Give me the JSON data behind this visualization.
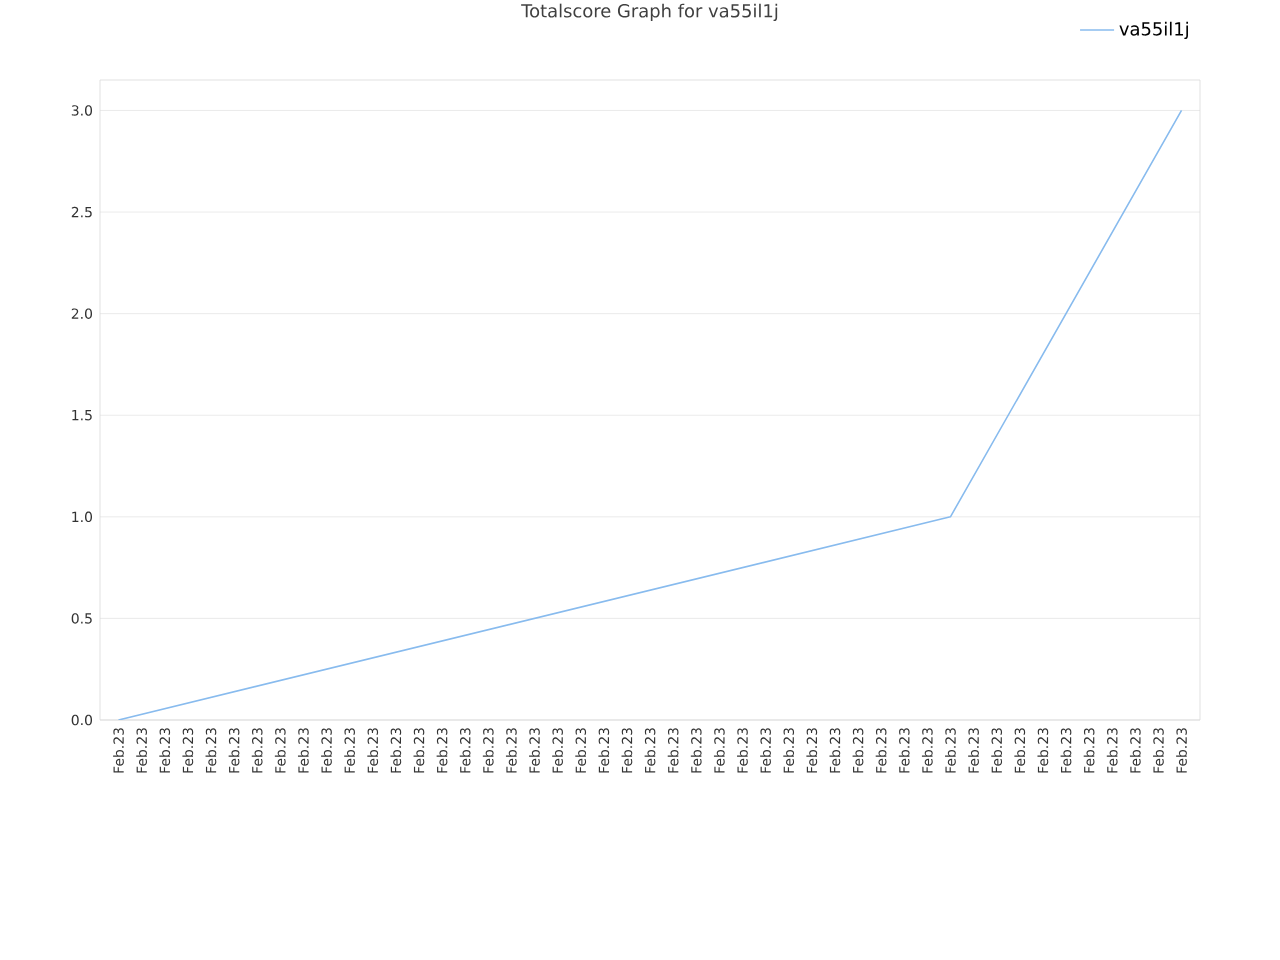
{
  "chart_data": {
    "type": "line",
    "title": "Totalscore Graph for va55il1j",
    "categories": [
      "Feb.23",
      "Feb.23",
      "Feb.23",
      "Feb.23",
      "Feb.23",
      "Feb.23",
      "Feb.23",
      "Feb.23",
      "Feb.23",
      "Feb.23",
      "Feb.23",
      "Feb.23",
      "Feb.23",
      "Feb.23",
      "Feb.23",
      "Feb.23",
      "Feb.23",
      "Feb.23",
      "Feb.23",
      "Feb.23",
      "Feb.23",
      "Feb.23",
      "Feb.23",
      "Feb.23",
      "Feb.23",
      "Feb.23",
      "Feb.23",
      "Feb.23",
      "Feb.23",
      "Feb.23",
      "Feb.23",
      "Feb.23",
      "Feb.23",
      "Feb.23",
      "Feb.23",
      "Feb.23",
      "Feb.23",
      "Feb.23",
      "Feb.23",
      "Feb.23",
      "Feb.23",
      "Feb.23",
      "Feb.23",
      "Feb.23",
      "Feb.23",
      "Feb.23",
      "Feb.23"
    ],
    "series": [
      {
        "name": "va55il1j",
        "color": "#88bbee",
        "values": [
          0,
          null,
          null,
          null,
          null,
          null,
          null,
          null,
          null,
          null,
          null,
          null,
          null,
          null,
          null,
          null,
          null,
          null,
          null,
          null,
          null,
          null,
          null,
          null,
          null,
          null,
          null,
          null,
          null,
          null,
          null,
          null,
          null,
          null,
          null,
          null,
          1,
          null,
          null,
          null,
          null,
          null,
          null,
          null,
          null,
          null,
          3
        ]
      }
    ],
    "ylim": [
      0,
      3.15
    ],
    "yticks": [
      {
        "value": 0,
        "label": "0.0"
      },
      {
        "value": 0.5,
        "label": "0.5"
      },
      {
        "value": 1,
        "label": "1.0"
      },
      {
        "value": 1.5,
        "label": "1.5"
      },
      {
        "value": 2,
        "label": "2.0"
      },
      {
        "value": 2.5,
        "label": "2.5"
      },
      {
        "value": 3,
        "label": "3.0"
      }
    ],
    "grid": "y",
    "legend": "top right",
    "line_style": "solid",
    "marker": "none"
  }
}
